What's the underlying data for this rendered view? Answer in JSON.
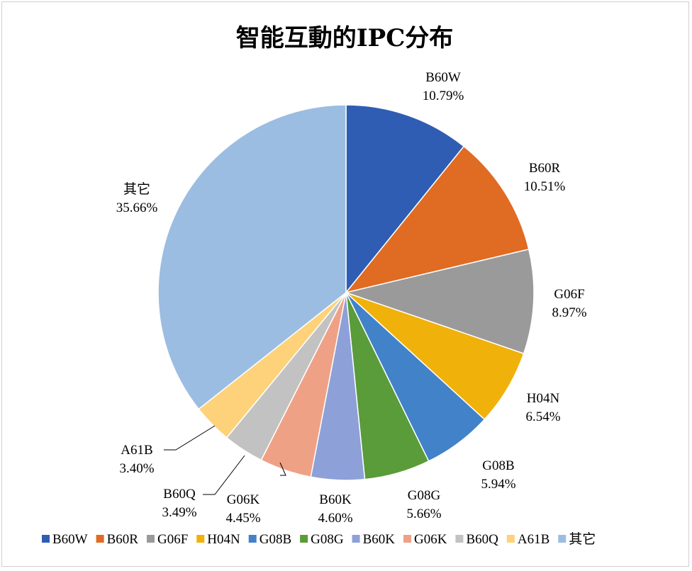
{
  "chart_data": {
    "type": "pie",
    "title": "智能互動的IPC分布",
    "slices": [
      {
        "name": "B60W",
        "value": 10.79,
        "label": "10.79%",
        "color": "#2F5DB3"
      },
      {
        "name": "B60R",
        "value": 10.51,
        "label": "10.51%",
        "color": "#E06B22"
      },
      {
        "name": "G06F",
        "value": 8.97,
        "label": "8.97%",
        "color": "#9A9A9A"
      },
      {
        "name": "H04N",
        "value": 6.54,
        "label": "6.54%",
        "color": "#F0B10A"
      },
      {
        "name": "G08B",
        "value": 5.94,
        "label": "5.94%",
        "color": "#4182C9"
      },
      {
        "name": "G08G",
        "value": 5.66,
        "label": "5.66%",
        "color": "#5A9B3A"
      },
      {
        "name": "B60K",
        "value": 4.6,
        "label": "4.60%",
        "color": "#8EA0D8"
      },
      {
        "name": "G06K",
        "value": 4.45,
        "label": "4.45%",
        "color": "#EFA185"
      },
      {
        "name": "B60Q",
        "value": 3.49,
        "label": "3.49%",
        "color": "#C2C2C2"
      },
      {
        "name": "A61B",
        "value": 3.4,
        "label": "3.40%",
        "color": "#FDD27A"
      },
      {
        "name": "其它",
        "value": 35.66,
        "label": "35.66%",
        "color": "#9CBDE2"
      }
    ],
    "legend_position": "bottom"
  }
}
